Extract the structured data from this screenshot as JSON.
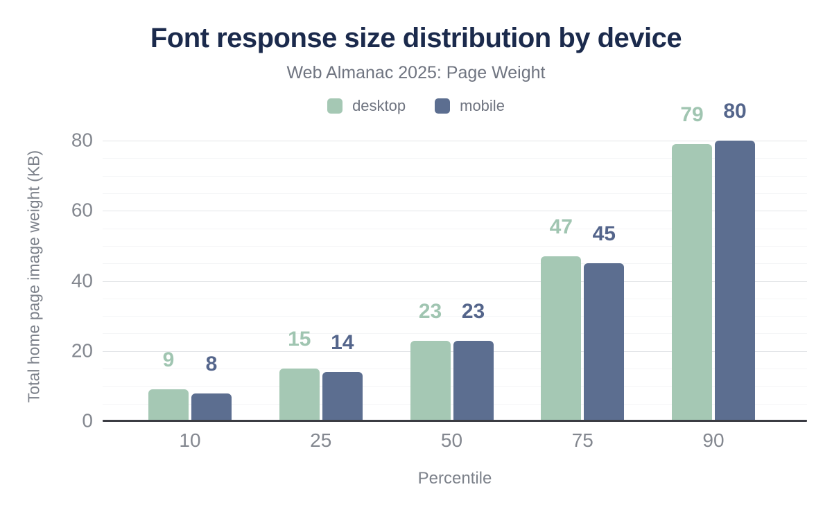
{
  "header": {
    "title": "Font response size distribution by device",
    "subtitle": "Web Almanac 2025: Page Weight"
  },
  "chart_data": {
    "type": "bar",
    "title": "Font response size distribution by device",
    "subtitle": "Web Almanac 2025: Page Weight",
    "categories": [
      "10",
      "25",
      "50",
      "75",
      "90"
    ],
    "series": [
      {
        "name": "desktop",
        "color": "#a5c8b4",
        "label_color": "#a0c5b1",
        "values": [
          9,
          15,
          23,
          47,
          79
        ]
      },
      {
        "name": "mobile",
        "color": "#5c6e90",
        "label_color": "#54658b",
        "values": [
          8,
          14,
          23,
          45,
          80
        ]
      }
    ],
    "xlabel": "Percentile",
    "ylabel": "Total home page image weight (KB)",
    "ylim": [
      0,
      80
    ],
    "yticks": [
      0,
      20,
      40,
      60,
      80
    ],
    "minor_grid_step": 5,
    "major_grid_step": 20,
    "grid": "horizontal",
    "legend_position": "top",
    "bar_labels_shown": true
  },
  "colors": {
    "title": "#1b2a4c",
    "subtitle_text": "#6f7480",
    "tick_text": "#83878f",
    "axis_title_text": "#7d828b",
    "axis_line": "#3b3c43",
    "major_gridline": "#e2e4e7",
    "minor_gridline": "#f4f5f6",
    "background": "#ffffff"
  }
}
